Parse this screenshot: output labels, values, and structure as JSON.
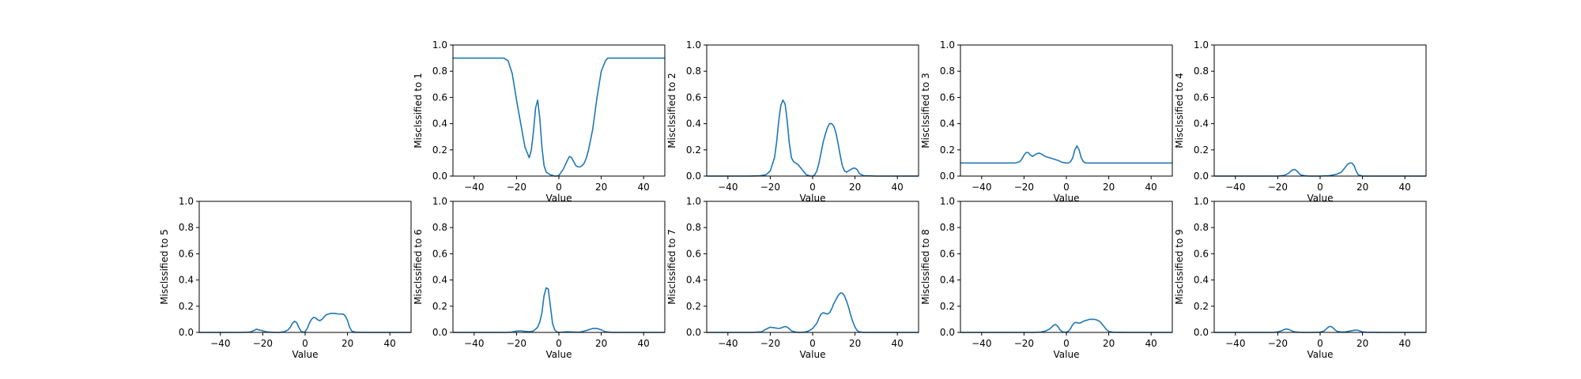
{
  "colors": {
    "line": "#1f77b4",
    "axis": "#000000",
    "background": "#ffffff"
  },
  "chart_data": [
    {
      "type": "line",
      "xlabel": "Value",
      "ylabel": "Misclssified to 1",
      "xlim": [
        -50,
        50
      ],
      "ylim": [
        0,
        1
      ],
      "x_ticks": [
        -40,
        -20,
        0,
        20,
        40
      ],
      "y_ticks": [
        0.0,
        0.2,
        0.4,
        0.6,
        0.8,
        1.0
      ],
      "series": [
        {
          "x": [
            -50,
            -40,
            -30,
            -26,
            -24,
            -22,
            -20,
            -18,
            -16,
            -14,
            -13,
            -12,
            -11,
            -10,
            -9,
            -8,
            -7,
            -6,
            -5,
            -4,
            -3,
            -2,
            -1,
            0,
            2,
            4,
            5,
            6,
            7,
            8,
            9,
            10,
            11,
            12,
            13,
            14,
            16,
            18,
            20,
            22,
            23,
            24,
            26,
            30,
            40,
            50
          ],
          "y": [
            0.9,
            0.9,
            0.9,
            0.9,
            0.88,
            0.78,
            0.58,
            0.4,
            0.22,
            0.14,
            0.2,
            0.34,
            0.52,
            0.58,
            0.44,
            0.22,
            0.08,
            0.03,
            0.02,
            0.01,
            0.005,
            0.0,
            0.0,
            0.005,
            0.05,
            0.12,
            0.15,
            0.14,
            0.11,
            0.08,
            0.07,
            0.07,
            0.08,
            0.1,
            0.14,
            0.2,
            0.36,
            0.6,
            0.8,
            0.88,
            0.9,
            0.9,
            0.9,
            0.9,
            0.9,
            0.9
          ]
        }
      ]
    },
    {
      "type": "line",
      "xlabel": "Value",
      "ylabel": "Misclssified to 2",
      "xlim": [
        -50,
        50
      ],
      "ylim": [
        0,
        1
      ],
      "x_ticks": [
        -40,
        -20,
        0,
        20,
        40
      ],
      "y_ticks": [
        0.0,
        0.2,
        0.4,
        0.6,
        0.8,
        1.0
      ],
      "series": [
        {
          "x": [
            -50,
            -40,
            -30,
            -25,
            -22,
            -20,
            -18,
            -17,
            -16,
            -15,
            -14,
            -13,
            -12,
            -11,
            -10,
            -9,
            -8,
            -7,
            -6,
            -5,
            -4,
            -3,
            -2,
            -1,
            0,
            1,
            2,
            3,
            4,
            5,
            6,
            7,
            8,
            9,
            10,
            11,
            12,
            13,
            14,
            15,
            16,
            17,
            18,
            19,
            20,
            21,
            22,
            24,
            30,
            40,
            50
          ],
          "y": [
            0,
            0,
            0,
            0.002,
            0.01,
            0.04,
            0.14,
            0.26,
            0.42,
            0.54,
            0.58,
            0.55,
            0.42,
            0.25,
            0.14,
            0.11,
            0.1,
            0.09,
            0.07,
            0.05,
            0.03,
            0.01,
            0.005,
            0,
            0.0,
            0.01,
            0.04,
            0.1,
            0.18,
            0.26,
            0.32,
            0.37,
            0.4,
            0.4,
            0.38,
            0.33,
            0.25,
            0.16,
            0.08,
            0.04,
            0.03,
            0.04,
            0.05,
            0.06,
            0.06,
            0.05,
            0.02,
            0.003,
            0,
            0,
            0
          ]
        }
      ]
    },
    {
      "type": "line",
      "xlabel": "Value",
      "ylabel": "Misclssified to 3",
      "xlim": [
        -50,
        50
      ],
      "ylim": [
        0,
        1
      ],
      "x_ticks": [
        -40,
        -20,
        0,
        20,
        40
      ],
      "y_ticks": [
        0.0,
        0.2,
        0.4,
        0.6,
        0.8,
        1.0
      ],
      "series": [
        {
          "x": [
            -50,
            -40,
            -30,
            -24,
            -22,
            -21,
            -20,
            -19,
            -18,
            -17,
            -16,
            -15,
            -14,
            -13,
            -12,
            -11,
            -10,
            -8,
            -6,
            -4,
            -2,
            0,
            1,
            2,
            3,
            4,
            5,
            6,
            7,
            8,
            9,
            10,
            12,
            20,
            30,
            40,
            50
          ],
          "y": [
            0.1,
            0.1,
            0.1,
            0.1,
            0.11,
            0.13,
            0.16,
            0.18,
            0.18,
            0.16,
            0.15,
            0.16,
            0.17,
            0.175,
            0.17,
            0.16,
            0.15,
            0.14,
            0.13,
            0.12,
            0.105,
            0.1,
            0.1,
            0.11,
            0.14,
            0.2,
            0.23,
            0.2,
            0.14,
            0.11,
            0.1,
            0.1,
            0.1,
            0.1,
            0.1,
            0.1,
            0.1
          ]
        }
      ]
    },
    {
      "type": "line",
      "xlabel": "Value",
      "ylabel": "Misclssified to 4",
      "xlim": [
        -50,
        50
      ],
      "ylim": [
        0,
        1
      ],
      "x_ticks": [
        -40,
        -20,
        0,
        20,
        40
      ],
      "y_ticks": [
        0.0,
        0.2,
        0.4,
        0.6,
        0.8,
        1.0
      ],
      "series": [
        {
          "x": [
            -50,
            -20,
            -17,
            -15,
            -14,
            -13,
            -12,
            -11,
            -10,
            -9,
            -7,
            -5,
            0,
            4,
            6,
            8,
            10,
            11,
            12,
            13,
            14,
            15,
            16,
            17,
            18,
            20,
            30,
            50
          ],
          "y": [
            0,
            0,
            0.005,
            0.02,
            0.035,
            0.048,
            0.05,
            0.04,
            0.02,
            0.008,
            0.002,
            0.0,
            0.0,
            0.003,
            0.008,
            0.015,
            0.03,
            0.05,
            0.07,
            0.09,
            0.1,
            0.1,
            0.08,
            0.04,
            0.01,
            0.0,
            0,
            0
          ]
        }
      ]
    },
    {
      "type": "line",
      "xlabel": "Value",
      "ylabel": "Misclssified to 5",
      "xlim": [
        -50,
        50
      ],
      "ylim": [
        0,
        1
      ],
      "x_ticks": [
        -40,
        -20,
        0,
        20,
        40
      ],
      "y_ticks": [
        0.0,
        0.2,
        0.4,
        0.6,
        0.8,
        1.0
      ],
      "series": [
        {
          "x": [
            -50,
            -30,
            -26,
            -24,
            -23,
            -22,
            -20,
            -18,
            -16,
            -14,
            -12,
            -10,
            -8,
            -7,
            -6,
            -5,
            -4,
            -3,
            -2,
            -1,
            0,
            1,
            2,
            3,
            4,
            5,
            6,
            7,
            8,
            9,
            10,
            11,
            12,
            14,
            16,
            18,
            19,
            20,
            21,
            22,
            24,
            30,
            50
          ],
          "y": [
            0,
            0,
            0.003,
            0.015,
            0.025,
            0.02,
            0.012,
            0.004,
            0.001,
            0.0,
            0.0,
            0.005,
            0.02,
            0.04,
            0.07,
            0.085,
            0.075,
            0.04,
            0.01,
            0.002,
            0.005,
            0.03,
            0.07,
            0.1,
            0.115,
            0.11,
            0.095,
            0.09,
            0.1,
            0.12,
            0.135,
            0.14,
            0.145,
            0.145,
            0.14,
            0.14,
            0.125,
            0.09,
            0.04,
            0.01,
            0.001,
            0,
            0
          ]
        }
      ]
    },
    {
      "type": "line",
      "xlabel": "Value",
      "ylabel": "Misclssified to 6",
      "xlim": [
        -50,
        50
      ],
      "ylim": [
        0,
        1
      ],
      "x_ticks": [
        -40,
        -20,
        0,
        20,
        40
      ],
      "y_ticks": [
        0.0,
        0.2,
        0.4,
        0.6,
        0.8,
        1.0
      ],
      "series": [
        {
          "x": [
            -50,
            -25,
            -22,
            -20,
            -18,
            -16,
            -14,
            -12,
            -10,
            -9,
            -8,
            -7,
            -6,
            -5,
            -4,
            -3,
            -2,
            -1,
            0,
            2,
            4,
            8,
            10,
            12,
            14,
            16,
            18,
            20,
            22,
            25,
            30,
            50
          ],
          "y": [
            0,
            0,
            0.003,
            0.01,
            0.012,
            0.008,
            0.006,
            0.01,
            0.04,
            0.08,
            0.15,
            0.28,
            0.34,
            0.33,
            0.2,
            0.07,
            0.02,
            0.005,
            0,
            0.003,
            0.005,
            0.002,
            0.003,
            0.01,
            0.02,
            0.03,
            0.03,
            0.02,
            0.005,
            0,
            0,
            0
          ]
        }
      ]
    },
    {
      "type": "line",
      "xlabel": "Value",
      "ylabel": "Misclssified to 7",
      "xlim": [
        -50,
        50
      ],
      "ylim": [
        0,
        1
      ],
      "x_ticks": [
        -40,
        -20,
        0,
        20,
        40
      ],
      "y_ticks": [
        0.0,
        0.2,
        0.4,
        0.6,
        0.8,
        1.0
      ],
      "series": [
        {
          "x": [
            -50,
            -28,
            -24,
            -22,
            -20,
            -18,
            -16,
            -15,
            -14,
            -13,
            -12,
            -11,
            -10,
            -8,
            -6,
            -4,
            -2,
            0,
            2,
            3,
            4,
            5,
            6,
            7,
            8,
            9,
            10,
            11,
            12,
            13,
            14,
            15,
            16,
            17,
            18,
            19,
            20,
            21,
            22,
            24,
            30,
            50
          ],
          "y": [
            0,
            0,
            0.005,
            0.025,
            0.04,
            0.035,
            0.03,
            0.033,
            0.04,
            0.045,
            0.04,
            0.028,
            0.012,
            0.002,
            0.0,
            0.002,
            0.01,
            0.03,
            0.07,
            0.11,
            0.14,
            0.15,
            0.145,
            0.14,
            0.15,
            0.18,
            0.22,
            0.25,
            0.28,
            0.3,
            0.3,
            0.28,
            0.24,
            0.19,
            0.13,
            0.08,
            0.04,
            0.015,
            0.005,
            0,
            0,
            0
          ]
        }
      ]
    },
    {
      "type": "line",
      "xlabel": "Value",
      "ylabel": "Misclssified to 8",
      "xlim": [
        -50,
        50
      ],
      "ylim": [
        0,
        1
      ],
      "x_ticks": [
        -40,
        -20,
        0,
        20,
        40
      ],
      "y_ticks": [
        0.0,
        0.2,
        0.4,
        0.6,
        0.8,
        1.0
      ],
      "series": [
        {
          "x": [
            -50,
            -15,
            -12,
            -10,
            -8,
            -7,
            -6,
            -5,
            -4,
            -3,
            -2,
            -1,
            0,
            1,
            2,
            3,
            4,
            5,
            6,
            7,
            8,
            9,
            10,
            11,
            12,
            13,
            14,
            15,
            16,
            17,
            18,
            19,
            20,
            22,
            30,
            50
          ],
          "y": [
            0,
            0,
            0.003,
            0.01,
            0.025,
            0.04,
            0.055,
            0.06,
            0.045,
            0.02,
            0.006,
            0.002,
            0.003,
            0.01,
            0.03,
            0.06,
            0.075,
            0.075,
            0.07,
            0.075,
            0.085,
            0.09,
            0.095,
            0.1,
            0.1,
            0.1,
            0.097,
            0.09,
            0.08,
            0.06,
            0.04,
            0.02,
            0.008,
            0.001,
            0,
            0
          ]
        }
      ]
    },
    {
      "type": "line",
      "xlabel": "Value",
      "ylabel": "Misclssified to 9",
      "xlim": [
        -50,
        50
      ],
      "ylim": [
        0,
        1
      ],
      "x_ticks": [
        -40,
        -20,
        0,
        20,
        40
      ],
      "y_ticks": [
        0.0,
        0.2,
        0.4,
        0.6,
        0.8,
        1.0
      ],
      "series": [
        {
          "x": [
            -50,
            -22,
            -20,
            -18,
            -17,
            -16,
            -15,
            -14,
            -12,
            -10,
            -8,
            -4,
            0,
            2,
            3,
            4,
            5,
            6,
            7,
            8,
            10,
            12,
            14,
            16,
            17,
            18,
            19,
            20,
            22,
            30,
            50
          ],
          "y": [
            0,
            0,
            0.004,
            0.014,
            0.022,
            0.026,
            0.024,
            0.016,
            0.004,
            0.001,
            0,
            0,
            0.002,
            0.012,
            0.028,
            0.042,
            0.046,
            0.036,
            0.02,
            0.008,
            0.003,
            0.004,
            0.01,
            0.016,
            0.018,
            0.016,
            0.01,
            0.004,
            0.001,
            0,
            0
          ]
        }
      ]
    }
  ]
}
